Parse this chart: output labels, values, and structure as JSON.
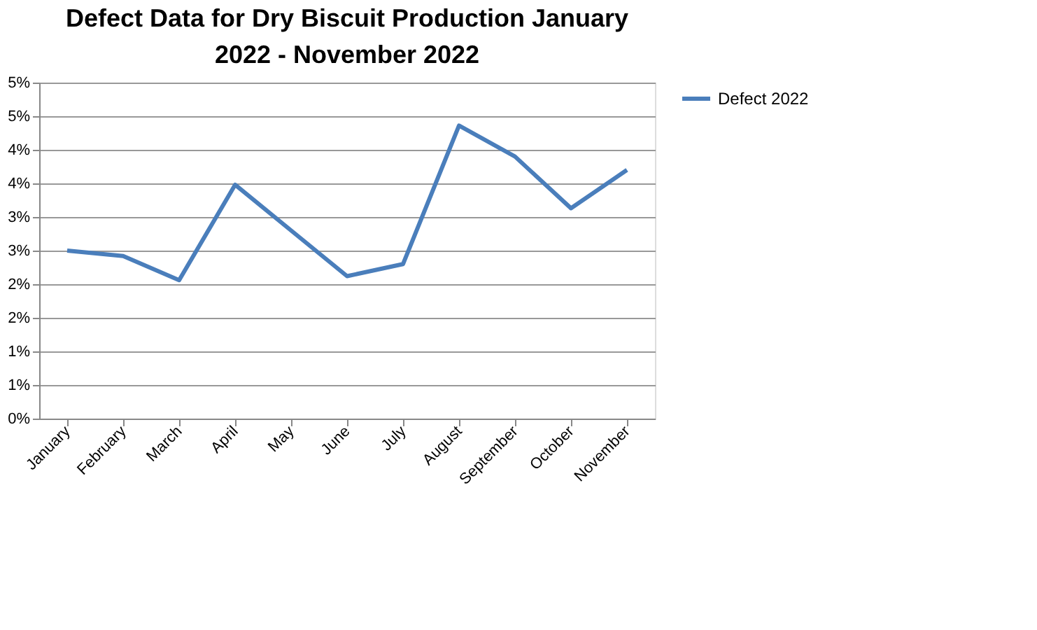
{
  "chart_data": {
    "type": "line",
    "title": "Defect Data for Dry Biscuit Production January 2022 - November 2022",
    "categories": [
      "January",
      "February",
      "March",
      "April",
      "May",
      "June",
      "July",
      "August",
      "September",
      "October",
      "November"
    ],
    "series": [
      {
        "name": "Defect 2022",
        "color": "#4a7ebb",
        "values": [
          2.5,
          2.42,
          2.06,
          3.48,
          2.8,
          2.12,
          2.3,
          4.36,
          3.9,
          3.13,
          3.7
        ]
      }
    ],
    "ylim": [
      0,
      5
    ],
    "yticks": [
      {
        "value": 0,
        "label": "0%"
      },
      {
        "value": 0.5,
        "label": "1%"
      },
      {
        "value": 1,
        "label": "1%"
      },
      {
        "value": 1.5,
        "label": "2%"
      },
      {
        "value": 2,
        "label": "2%"
      },
      {
        "value": 2.5,
        "label": "3%"
      },
      {
        "value": 3,
        "label": "3%"
      },
      {
        "value": 3.5,
        "label": "4%"
      },
      {
        "value": 4,
        "label": "4%"
      },
      {
        "value": 4.5,
        "label": "5%"
      },
      {
        "value": 5,
        "label": "5%"
      }
    ],
    "grid": "y",
    "legend": "right",
    "marker": "none",
    "line_style": "solid"
  }
}
